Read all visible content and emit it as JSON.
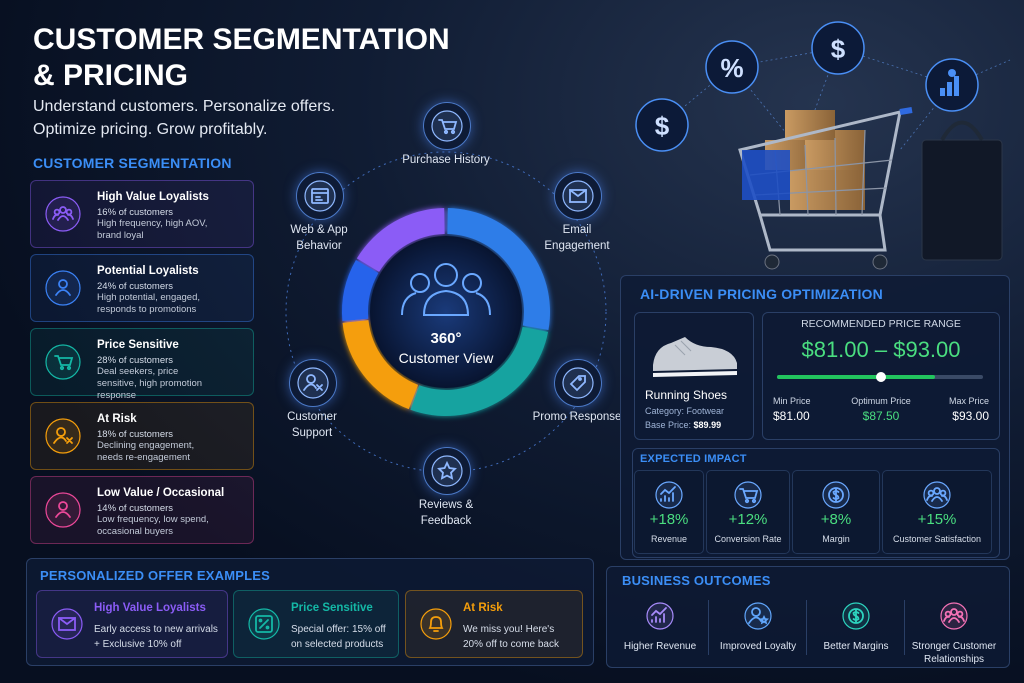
{
  "header": {
    "title": [
      "CUSTOMER SEGMENTATION",
      "& PRICING"
    ],
    "subtitle": [
      "Understand customers. Personalize offers.",
      "Optimize pricing. Grow profitably."
    ]
  },
  "segmentation": {
    "title": "CUSTOMER SEGMENTATION",
    "items": [
      {
        "name": "High Value Loyalists",
        "share": "16% of customers",
        "description": "High frequency, high AOV, brand loyal"
      },
      {
        "name": "Potential Loyalists",
        "share": "24% of customers",
        "description": "High potential, engaged, responds to promotions"
      },
      {
        "name": "Price Sensitive",
        "share": "28% of customers",
        "description": "Deal seekers, price sensitive, high promotion response"
      },
      {
        "name": "At Risk",
        "share": "18% of customers",
        "description": "Declining engagement, needs re-engagement"
      },
      {
        "name": "Low Value / Occasional",
        "share": "14% of customers",
        "description": "Low frequency, low spend, occasional buyers"
      }
    ]
  },
  "hub": {
    "title": "360°",
    "subtitle": "Customer View",
    "nodes": [
      "Purchase History",
      "Email Engagement",
      "Promo Response",
      "Reviews & Feedback",
      "Customer Support",
      "Web & App Behavior"
    ]
  },
  "pricing": {
    "title": "AI-DRIVEN PRICING OPTIMIZATION",
    "product": {
      "name": "Running Shoes",
      "category": "Category: Footwear",
      "base_price_label": "Base Price:",
      "base_price": "$89.99"
    },
    "range": {
      "title": "RECOMMENDED PRICE RANGE",
      "value": "$81.00 – $93.00",
      "min_label": "Min Price",
      "min": "$81.00",
      "optimum_label": "Optimum Price",
      "optimum": "$87.50",
      "max_label": "Max Price",
      "max": "$93.00"
    },
    "impact": {
      "title": "EXPECTED IMPACT",
      "items": [
        {
          "value": "+18%",
          "label": "Revenue"
        },
        {
          "value": "+12%",
          "label": "Conversion Rate"
        },
        {
          "value": "+8%",
          "label": "Margin"
        },
        {
          "value": "+15%",
          "label": "Customer Satisfaction"
        }
      ]
    }
  },
  "outcomes": {
    "title": "BUSINESS OUTCOMES",
    "items": [
      "Higher Revenue",
      "Improved Loyalty",
      "Better Margins",
      "Stronger Customer Relationships"
    ]
  },
  "offers": {
    "title": "PERSONALIZED OFFER EXAMPLES",
    "items": [
      {
        "name": "High Value Loyalists",
        "text": "Early access to new arrivals + Exclusive 10% off"
      },
      {
        "name": "Price Sensitive",
        "text": "Special offer: 15% off on selected products"
      },
      {
        "name": "At Risk",
        "text": "We miss you! Here's 20% off to come back"
      }
    ]
  }
}
